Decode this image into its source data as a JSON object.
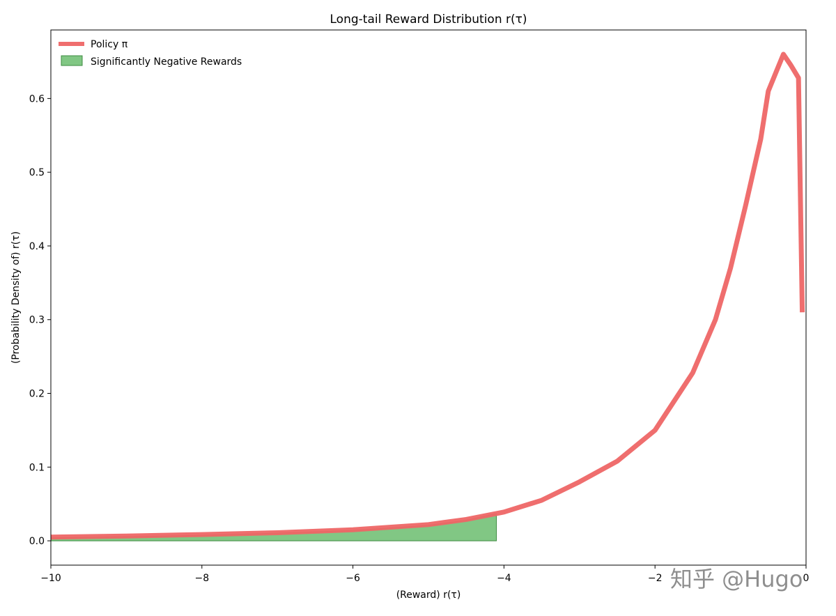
{
  "chart_data": {
    "type": "line",
    "title": "Long-tail Reward Distribution r(τ)",
    "xlabel": "(Reward) r(τ)",
    "ylabel": "(Probability Density of) r(τ)",
    "xlim": [
      -10,
      0
    ],
    "ylim": [
      -0.033,
      0.693
    ],
    "xticks": [
      -10,
      -8,
      -6,
      -4,
      -2,
      0
    ],
    "xtick_labels": [
      "−10",
      "−8",
      "−6",
      "−4",
      "−2",
      "0"
    ],
    "yticks": [
      0.0,
      0.1,
      0.2,
      0.3,
      0.4,
      0.5,
      0.6
    ],
    "ytick_labels": [
      "0.0",
      "0.1",
      "0.2",
      "0.3",
      "0.4",
      "0.5",
      "0.6"
    ],
    "grid": false,
    "legend_position": "top-left",
    "series": [
      {
        "name": "Policy π",
        "kind": "line",
        "color": "#ee6666",
        "x": [
          -10,
          -9,
          -8,
          -7,
          -6,
          -5,
          -4.5,
          -4,
          -3.5,
          -3,
          -2.5,
          -2,
          -1.5,
          -1.2,
          -1,
          -0.8,
          -0.6,
          -0.5,
          -0.4,
          -0.3,
          -0.2,
          -0.1,
          -0.05
        ],
        "y": [
          0.005,
          0.0065,
          0.0085,
          0.011,
          0.015,
          0.022,
          0.029,
          0.039,
          0.055,
          0.08,
          0.108,
          0.15,
          0.228,
          0.3,
          0.37,
          0.455,
          0.545,
          0.61,
          0.635,
          0.66,
          0.645,
          0.628,
          0.31
        ]
      },
      {
        "name": "Significantly Negative Rewards",
        "kind": "area",
        "color": "#4caf50",
        "x": [
          -10,
          -9,
          -8,
          -7,
          -6,
          -5,
          -4.5,
          -4.1
        ],
        "y": [
          0.004,
          0.0055,
          0.0075,
          0.0105,
          0.014,
          0.021,
          0.028,
          0.037
        ]
      }
    ],
    "legend": [
      "Policy π",
      "Significantly Negative Rewards"
    ]
  },
  "watermark": "知乎 @Hugo"
}
